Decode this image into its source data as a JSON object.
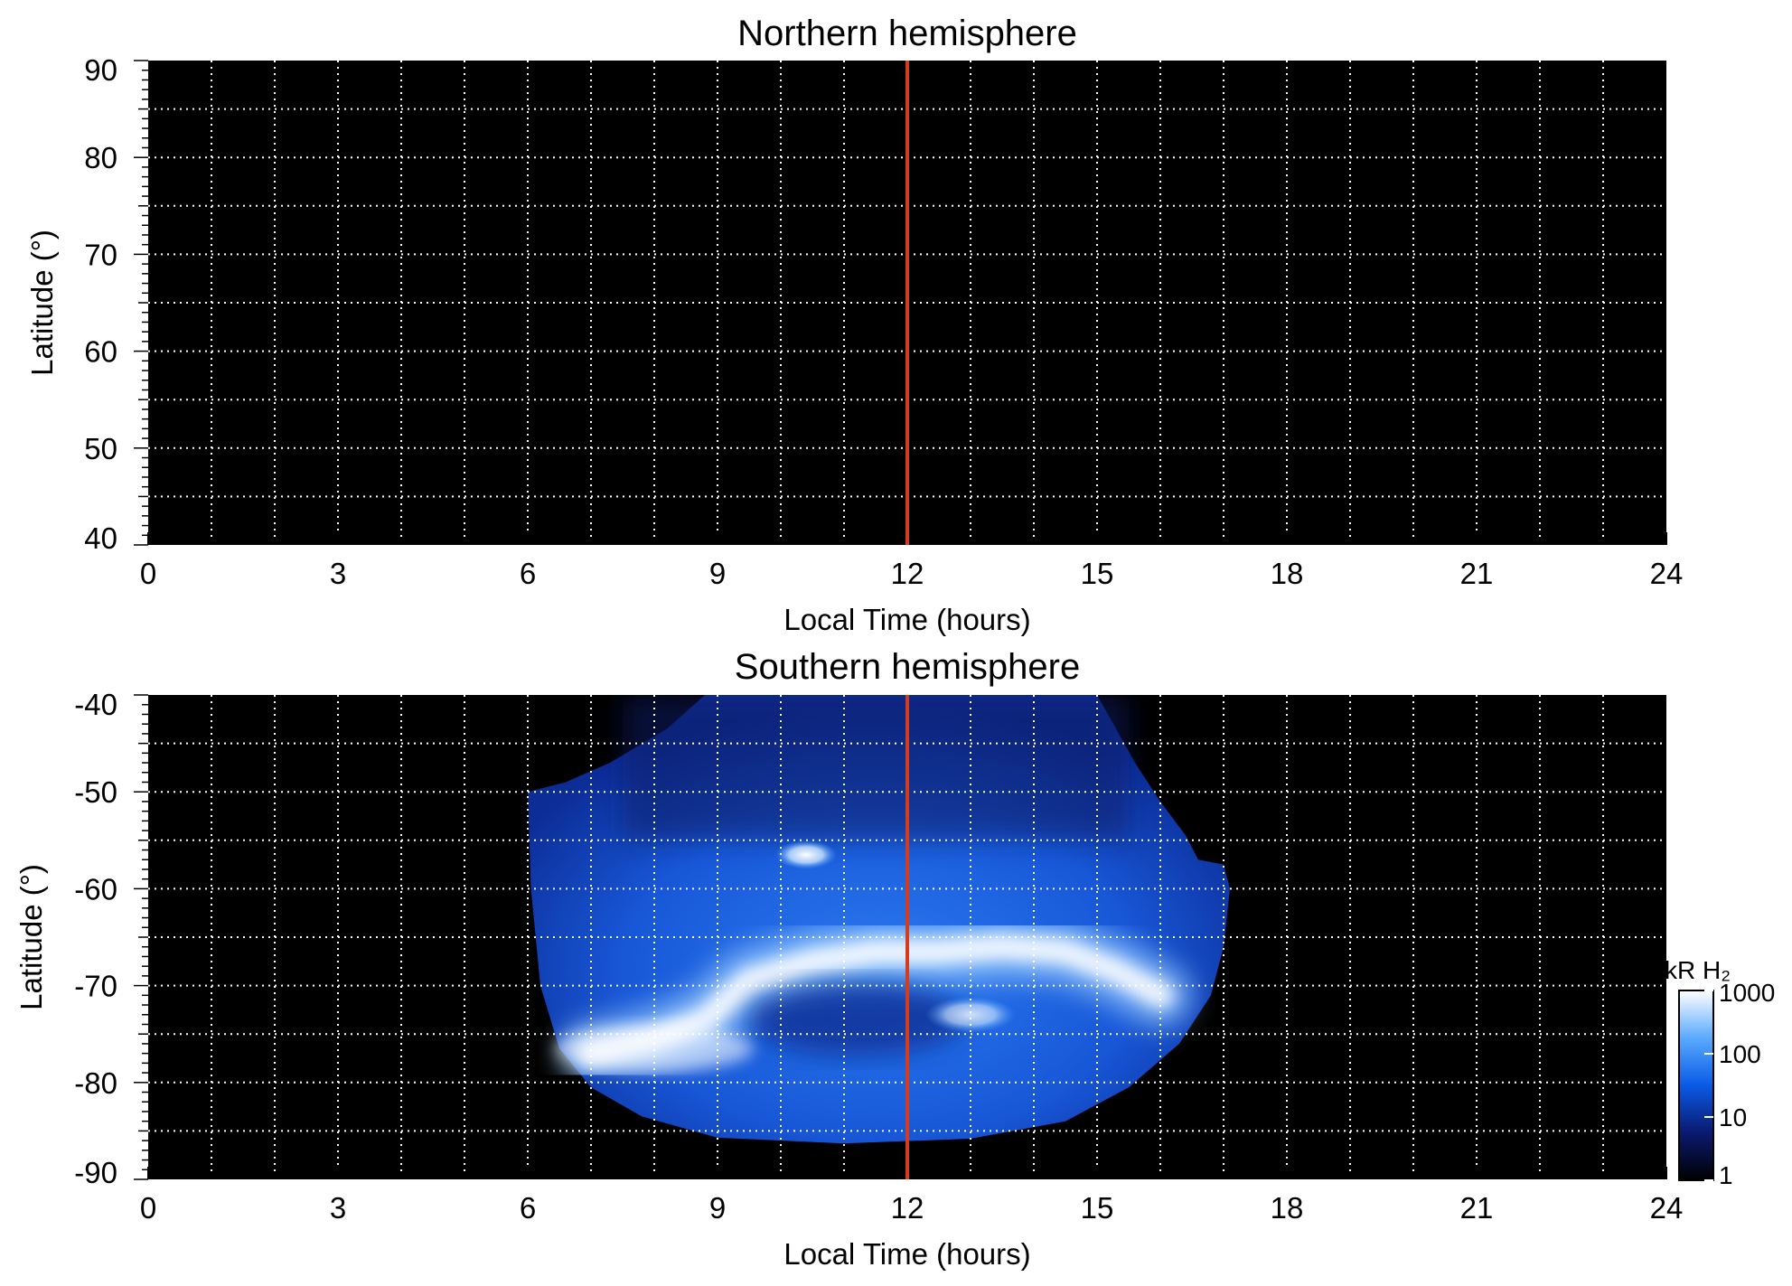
{
  "chart_data": [
    {
      "type": "heatmap",
      "title": "Northern hemisphere",
      "xlabel": "Local Time (hours)",
      "ylabel": "Latitude (°)",
      "xlim": [
        0,
        24
      ],
      "ylim": [
        40,
        90
      ],
      "xticks": [
        "0",
        "3",
        "6",
        "9",
        "12",
        "15",
        "18",
        "21",
        "24"
      ],
      "yticks": [
        "40",
        "50",
        "60",
        "70",
        "80",
        "90"
      ],
      "grid": true,
      "grid_x_step_hours": 1,
      "grid_y_step_deg": 5,
      "background_color": "#000000",
      "marker_line": {
        "x": 12,
        "color": "#d43c1c"
      },
      "has_emission": false
    },
    {
      "type": "heatmap",
      "title": "Southern hemisphere",
      "xlabel": "Local Time (hours)",
      "ylabel": "Latitude (°)",
      "xlim": [
        0,
        24
      ],
      "ylim": [
        -90,
        -40
      ],
      "xticks": [
        "0",
        "3",
        "6",
        "9",
        "12",
        "15",
        "18",
        "21",
        "24"
      ],
      "yticks": [
        "-40",
        "-50",
        "-60",
        "-70",
        "-80",
        "-90"
      ],
      "grid": true,
      "grid_x_step_hours": 1,
      "grid_y_step_deg": 5,
      "background_color": "#000000",
      "marker_line": {
        "x": 12,
        "color": "#d43c1c"
      },
      "has_emission": true,
      "emission_region": {
        "outline_lt_lat": [
          [
            6.0,
            -50.0
          ],
          [
            6.6,
            -49.0
          ],
          [
            7.3,
            -47.0
          ],
          [
            8.2,
            -43.5
          ],
          [
            8.8,
            -40.0
          ],
          [
            15.0,
            -40.0
          ],
          [
            15.6,
            -47.0
          ],
          [
            16.0,
            -51.0
          ],
          [
            16.4,
            -54.5
          ],
          [
            16.6,
            -57.0
          ],
          [
            17.0,
            -57.5
          ],
          [
            17.1,
            -60.0
          ],
          [
            17.0,
            -66.0
          ],
          [
            16.8,
            -71.0
          ],
          [
            16.3,
            -76.0
          ],
          [
            15.5,
            -80.5
          ],
          [
            14.5,
            -84.0
          ],
          [
            13.0,
            -85.8
          ],
          [
            11.0,
            -86.3
          ],
          [
            9.0,
            -85.7
          ],
          [
            7.8,
            -83.5
          ],
          [
            7.0,
            -80.5
          ],
          [
            6.5,
            -76.5
          ],
          [
            6.2,
            -70.0
          ],
          [
            6.05,
            -60.0
          ]
        ],
        "main_oval_lt_lat": [
          [
            7.0,
            -77.0
          ],
          [
            8.0,
            -75.5
          ],
          [
            8.8,
            -73.5
          ],
          [
            9.5,
            -69.5
          ],
          [
            10.5,
            -67.5
          ],
          [
            11.5,
            -66.5
          ],
          [
            12.5,
            -66.5
          ],
          [
            13.5,
            -66.0
          ],
          [
            14.5,
            -66.5
          ],
          [
            15.3,
            -68.5
          ],
          [
            16.0,
            -71.0
          ]
        ],
        "bright_spot_lt_lat": [
          10.4,
          -56.5
        ],
        "inner_spot_lt_lat": [
          13.0,
          -73.0
        ]
      },
      "colorbar": {
        "label": "kR H₂",
        "scale": "log",
        "ticks": [
          "1000",
          "100",
          "10",
          "1"
        ],
        "tick_values": [
          1000,
          100,
          10,
          1
        ],
        "colors": [
          "#000000",
          "#0a1a6e",
          "#0a5ae6",
          "#5aaaff",
          "#ffffff"
        ]
      }
    }
  ]
}
